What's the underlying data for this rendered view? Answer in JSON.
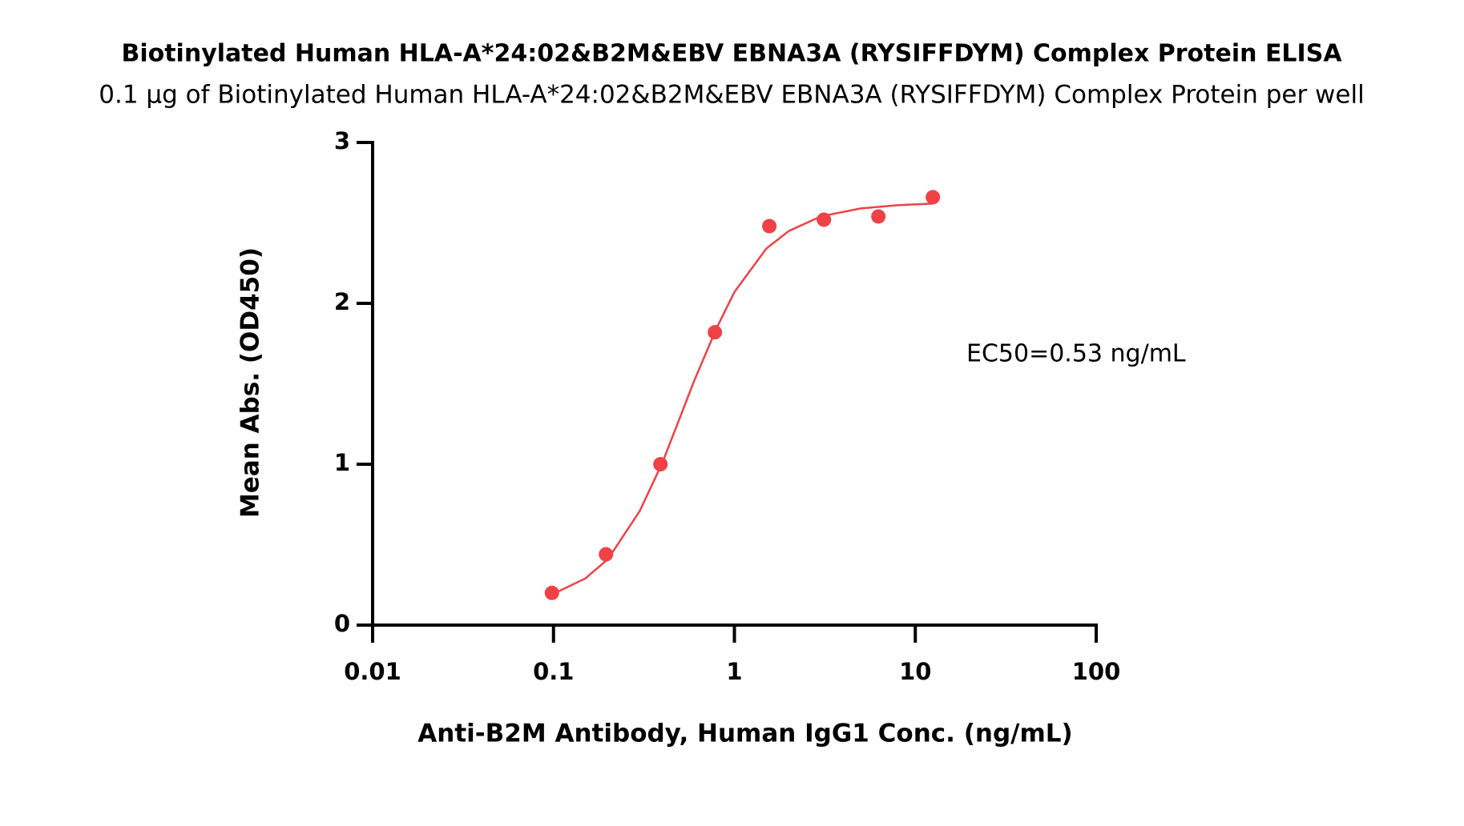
{
  "chart_data": {
    "type": "scatter",
    "title": "Biotinylated Human HLA-A*24:02&B2M&EBV EBNA3A (RYSIFFDYM) Complex Protein ELISA",
    "subtitle": "0.1 μg of Biotinylated Human HLA-A*24:02&B2M&EBV EBNA3A (RYSIFFDYM) Complex Protein per well",
    "x_label": "Anti-B2M Antibody, Human IgG1 Conc. (ng/mL)",
    "y_label": "Mean Abs. (OD450)",
    "annotation": "EC50=0.53 ng/mL",
    "x_scale": "log",
    "xlim": [
      0.01,
      100
    ],
    "xticks": [
      0.01,
      0.1,
      1,
      10,
      100
    ],
    "ylim": [
      0,
      3
    ],
    "yticks": [
      0,
      1,
      2,
      3
    ],
    "series": [
      {
        "style": "points",
        "color": "#ef4146",
        "x": [
          0.098,
          0.195,
          0.39,
          0.78,
          1.56,
          3.125,
          6.25,
          12.5
        ],
        "values": [
          0.2,
          0.44,
          1.0,
          1.82,
          2.48,
          2.52,
          2.54,
          2.66
        ]
      },
      {
        "style": "line",
        "color": "#ef4146",
        "x": [
          0.098,
          0.15,
          0.2,
          0.3,
          0.4,
          0.5,
          0.6,
          0.8,
          1,
          1.5,
          2,
          3,
          5,
          8,
          12.5
        ],
        "values": [
          0.19,
          0.29,
          0.41,
          0.71,
          1.01,
          1.29,
          1.52,
          1.85,
          2.07,
          2.34,
          2.45,
          2.54,
          2.59,
          2.61,
          2.62
        ]
      }
    ]
  }
}
